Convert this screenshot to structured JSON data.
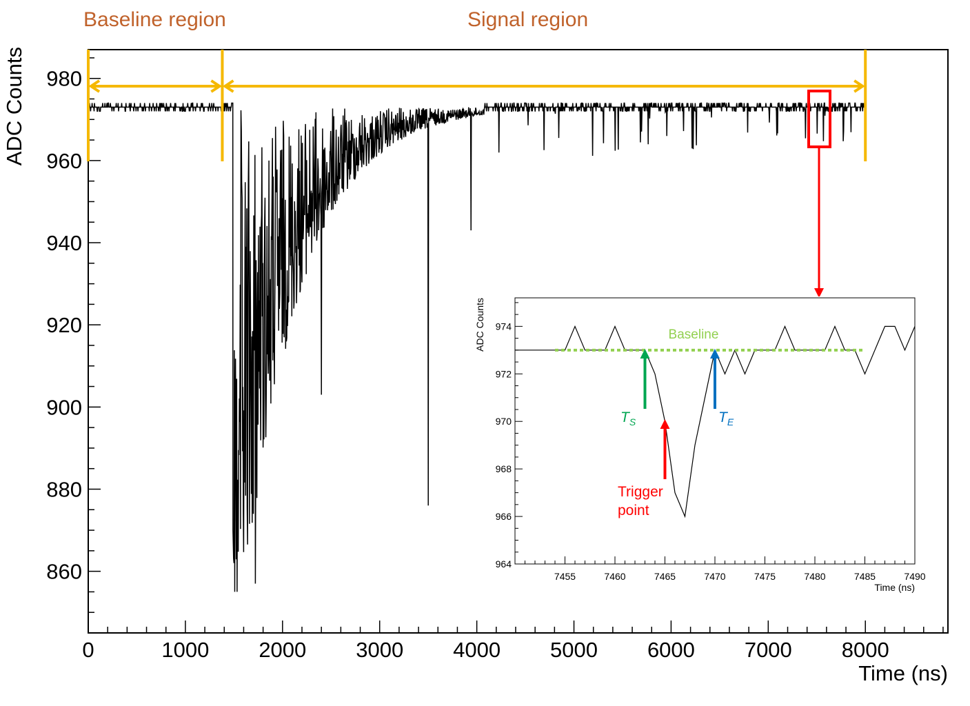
{
  "regions": {
    "baseline_label": "Baseline region",
    "signal_label": "Signal region",
    "color": "#c0622b",
    "marker_color": "#f5b800"
  },
  "chart_data": [
    {
      "type": "line",
      "title": "",
      "xlabel": "Time (ns)",
      "ylabel": "ADC Counts",
      "xlim": [
        0,
        8850
      ],
      "ylim": [
        845,
        987
      ],
      "grid": false,
      "x_ticks": [
        "0",
        "1000",
        "2000",
        "3000",
        "4000",
        "5000",
        "6000",
        "7000",
        "8000"
      ],
      "y_ticks": [
        "860",
        "880",
        "900",
        "920",
        "940",
        "960",
        "980"
      ],
      "x_tick_values": [
        0,
        1000,
        2000,
        3000,
        4000,
        5000,
        6000,
        7000,
        8000
      ],
      "y_tick_values": [
        860,
        880,
        900,
        920,
        940,
        960,
        980
      ],
      "baseline_level": 973,
      "pulse_start": 1490,
      "baseline_region": [
        0,
        1380
      ],
      "signal_region": [
        1380,
        8000
      ],
      "zoom_window": {
        "x": [
          7450,
          7490
        ],
        "y": [
          964,
          975
        ]
      },
      "line_color": "#000000",
      "notable_points": [
        {
          "x": 1490,
          "y": 870
        },
        {
          "x": 1500,
          "y": 862
        },
        {
          "x": 1700,
          "y": 874
        },
        {
          "x": 1720,
          "y": 857
        },
        {
          "x": 1860,
          "y": 960
        },
        {
          "x": 2400,
          "y": 903
        },
        {
          "x": 3500,
          "y": 876
        },
        {
          "x": 3940,
          "y": 943
        }
      ]
    },
    {
      "type": "line",
      "title": "",
      "xlabel": "Time (ns)",
      "ylabel": "ADC Counts",
      "xlim": [
        7450,
        7490
      ],
      "ylim": [
        964,
        975.2
      ],
      "grid": false,
      "x_ticks": [
        "7455",
        "7460",
        "7465",
        "7470",
        "7475",
        "7480",
        "7485",
        "7490"
      ],
      "y_ticks": [
        "964",
        "966",
        "968",
        "970",
        "972",
        "974"
      ],
      "x_tick_values": [
        7455,
        7460,
        7465,
        7470,
        7475,
        7480,
        7485,
        7490
      ],
      "y_tick_values": [
        964,
        966,
        968,
        970,
        972,
        974
      ],
      "x": [
        7450,
        7451,
        7452,
        7453,
        7454,
        7455,
        7456,
        7457,
        7458,
        7459,
        7460,
        7461,
        7462,
        7463,
        7464,
        7465,
        7466,
        7467,
        7468,
        7469,
        7470,
        7471,
        7472,
        7473,
        7474,
        7475,
        7476,
        7477,
        7478,
        7479,
        7480,
        7481,
        7482,
        7483,
        7484,
        7485,
        7486,
        7487,
        7488,
        7489,
        7490
      ],
      "y": [
        973,
        973,
        973,
        973,
        973,
        973,
        974,
        973,
        973,
        973,
        974,
        973,
        973,
        973,
        972,
        970,
        967,
        966,
        969,
        971,
        973,
        972,
        973,
        972,
        973,
        973,
        973,
        974,
        973,
        973,
        973,
        973,
        974,
        973,
        973,
        972,
        973,
        974,
        974,
        973,
        974
      ],
      "baseline": {
        "label": "Baseline",
        "value": 973,
        "x_range": [
          7454,
          7485
        ],
        "color": "#92d050"
      },
      "markers": [
        {
          "name": "T_S",
          "main": "T",
          "sub": "S",
          "x": 7463,
          "color": "#00a651"
        },
        {
          "name": "Trigger point",
          "lines": [
            "Trigger",
            "point"
          ],
          "x": 7465,
          "color": "#ff0000"
        },
        {
          "name": "T_E",
          "main": "T",
          "sub": "E",
          "x": 7470,
          "color": "#0070c0"
        }
      ]
    }
  ]
}
